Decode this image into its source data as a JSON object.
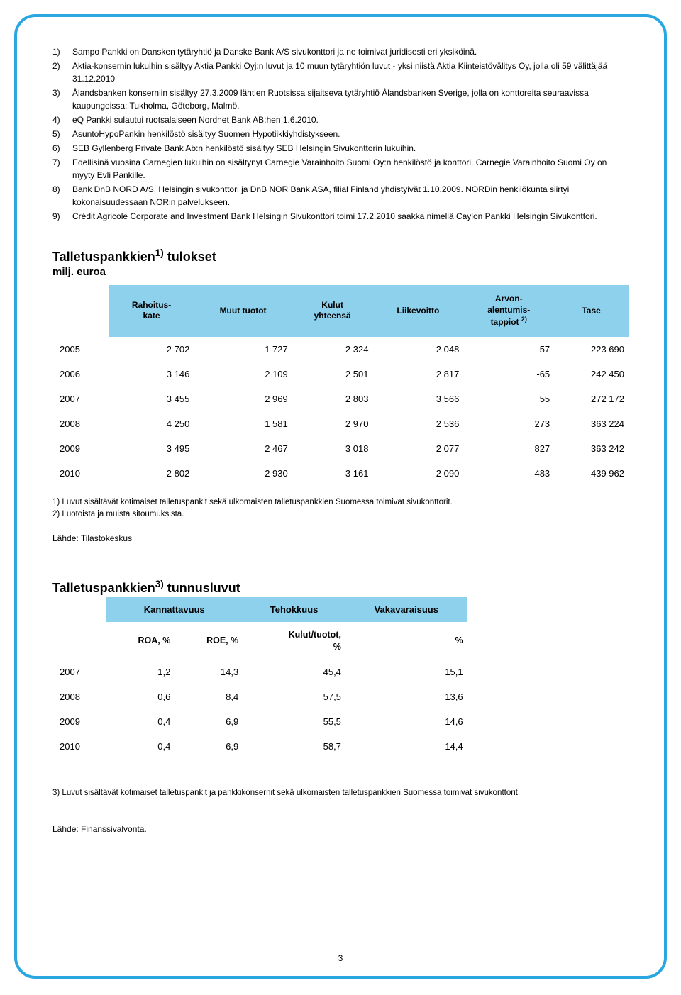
{
  "footnotes": [
    {
      "n": "1)",
      "t": "Sampo Pankki on Dansken tytäryhtiö ja Danske Bank A/S sivukonttori ja ne toimivat juridisesti eri yksiköinä."
    },
    {
      "n": "2)",
      "t": "Aktia-konsernin lukuihin sisältyy Aktia Pankki Oyj:n luvut ja 10 muun tytäryhtiön luvut - yksi niistä Aktia Kiinteistövälitys Oy, jolla oli 59 välittäjää 31.12.2010"
    },
    {
      "n": "3)",
      "t": "Ålandsbanken konserniin sisältyy 27.3.2009 lähtien Ruotsissa sijaitseva tytäryhtiö Ålandsbanken Sverige, jolla on konttoreita seuraavissa kaupungeissa: Tukholma, Göteborg, Malmö."
    },
    {
      "n": "4)",
      "t": "eQ Pankki sulautui ruotsalaiseen Nordnet Bank AB:hen 1.6.2010."
    },
    {
      "n": "5)",
      "t": "AsuntoHypoPankin henkilöstö sisältyy Suomen Hypotiikkiyhdistykseen."
    },
    {
      "n": "6)",
      "t": "SEB Gyllenberg Private Bank Ab:n henkilöstö sisältyy SEB Helsingin Sivukonttorin lukuihin."
    },
    {
      "n": "7)",
      "t": "Edellisinä vuosina Carnegien lukuihin on sisältynyt Carnegie Varainhoito Suomi Oy:n henkilöstö ja konttori. Carnegie Varainhoito Suomi Oy on myyty Evli Pankille."
    },
    {
      "n": "8)",
      "t": "Bank DnB NORD A/S, Helsingin sivukonttori ja DnB NOR Bank ASA, filial Finland yhdistyivät 1.10.2009. NORDin henkilökunta siirtyi kokonaisuudessaan NORin palvelukseen."
    },
    {
      "n": "9)",
      "t": "Crédit Agricole Corporate and Investment Bank Helsingin Sivukonttori toimi 17.2.2010 saakka nimellä Caylon Pankki Helsingin Sivukonttori."
    }
  ],
  "t1": {
    "title_pre": "Talletuspankkien",
    "title_sup": "1)",
    "title_post": " tulokset",
    "sub": "milj. euroa",
    "headers": [
      "",
      "Rahoitus-\nkate",
      "Muut tuotot",
      "Kulut\nyhteensä",
      "Liikevoitto",
      "Arvon-\nalentumis-\ntappiot 2)",
      "Tase"
    ],
    "header_bg": "#8dd1ec",
    "rows": [
      [
        "2005",
        "2 702",
        "1 727",
        "2 324",
        "2 048",
        "57",
        "223 690"
      ],
      [
        "2006",
        "3 146",
        "2 109",
        "2 501",
        "2 817",
        "-65",
        "242 450"
      ],
      [
        "2007",
        "3 455",
        "2 969",
        "2 803",
        "3 566",
        "55",
        "272 172"
      ],
      [
        "2008",
        "4 250",
        "1 581",
        "2 970",
        "2 536",
        "273",
        "363 224"
      ],
      [
        "2009",
        "3 495",
        "2 467",
        "3 018",
        "2 077",
        "827",
        "363 242"
      ],
      [
        "2010",
        "2 802",
        "2 930",
        "3 161",
        "2 090",
        "483",
        "439 962"
      ]
    ],
    "note1": "1) Luvut sisältävät kotimaiset talletuspankit sekä ulkomaisten talletuspankkien Suomessa toimivat sivukonttorit.",
    "note2": "2) Luotoista ja muista sitoumuksista.",
    "source": "Lähde: Tilastokeskus"
  },
  "t2": {
    "title_pre": "Talletuspankkien",
    "title_sup": "3)",
    "title_post": " tunnusluvut",
    "grp_headers": [
      "",
      "Kannattavuus",
      "Tehokkuus",
      "Vakavaraisuus"
    ],
    "sub_headers": [
      "",
      "ROA, %",
      "ROE, %",
      "Kulut/tuotot,\n%",
      "%"
    ],
    "rows": [
      [
        "2007",
        "1,2",
        "14,3",
        "45,4",
        "15,1"
      ],
      [
        "2008",
        "0,6",
        "8,4",
        "57,5",
        "13,6"
      ],
      [
        "2009",
        "0,4",
        "6,9",
        "55,5",
        "14,6"
      ],
      [
        "2010",
        "0,4",
        "6,9",
        "58,7",
        "14,4"
      ]
    ],
    "note": "3) Luvut sisältävät kotimaiset talletuspankit ja pankkikonsernit sekä ulkomaisten talletuspankkien Suomessa toimivat sivukonttorit.",
    "source": "Lähde: Finanssivalvonta."
  },
  "page_num": "3"
}
